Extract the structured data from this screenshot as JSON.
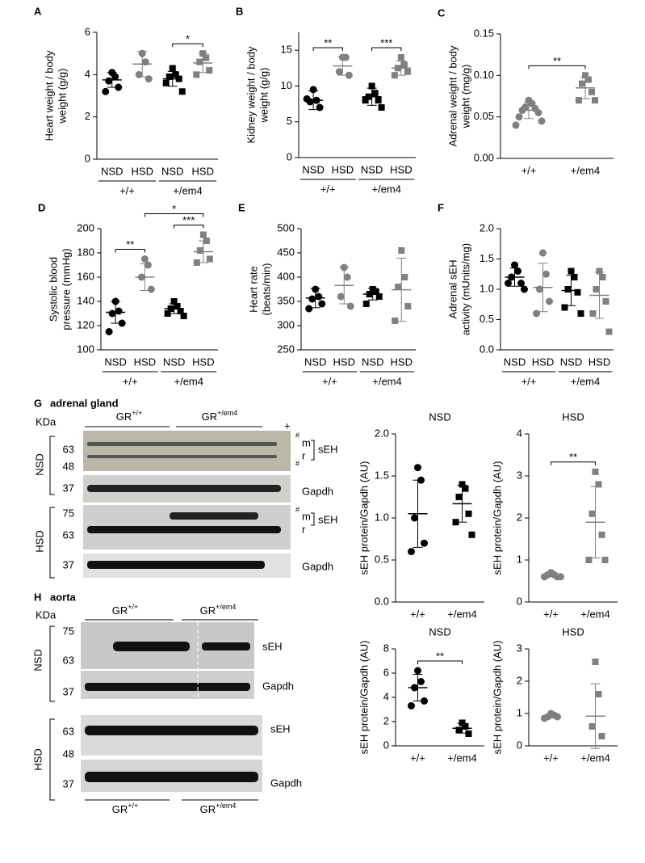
{
  "chart_data": [
    {
      "type": "dot",
      "panel": "A",
      "ylabel": [
        "Heart weight / body",
        "weight (g/g)"
      ],
      "ylim": [
        0,
        6
      ],
      "yticks": [
        0,
        2,
        4,
        6
      ],
      "categories": [
        "NSD",
        "HSD",
        "NSD",
        "HSD"
      ],
      "groups": [
        "+/+",
        "+/em4"
      ],
      "colors": [
        "#000000",
        "#808080",
        "#000000",
        "#808080"
      ],
      "markers": [
        "circle",
        "circle",
        "square",
        "square"
      ],
      "points": [
        [
          4.1,
          3.9,
          3.7,
          3.4,
          3.2
        ],
        [
          5.0,
          4.6,
          4.0,
          3.8
        ],
        [
          4.3,
          4.0,
          3.9,
          3.8,
          3.6,
          3.2
        ],
        [
          5.0,
          4.8,
          4.6,
          4.2,
          4.0
        ]
      ],
      "means": [
        3.75,
        4.5,
        3.8,
        4.55
      ],
      "sds": [
        0.35,
        0.6,
        0.35,
        0.45
      ],
      "brackets": [
        {
          "between": [
            2,
            3
          ],
          "label": "*"
        }
      ]
    },
    {
      "type": "dot",
      "panel": "B",
      "ylabel": [
        "Kidney weight / body",
        "weight (g/g)"
      ],
      "ylim": [
        0,
        17.5
      ],
      "yticks": [
        0,
        5,
        10,
        15
      ],
      "categories": [
        "NSD",
        "HSD",
        "NSD",
        "HSD"
      ],
      "groups": [
        "+/+",
        "+/em4"
      ],
      "colors": [
        "#000000",
        "#808080",
        "#000000",
        "#808080"
      ],
      "markers": [
        "circle",
        "circle",
        "square",
        "square"
      ],
      "points": [
        [
          9.5,
          8,
          7.8,
          7,
          8.2
        ],
        [
          14,
          14,
          12,
          11.5
        ],
        [
          10,
          9,
          8.5,
          8,
          8,
          7
        ],
        [
          14,
          13,
          12.5,
          12,
          11.5
        ]
      ],
      "means": [
        8,
        12.8,
        8.5,
        12.5
      ],
      "sds": [
        1.3,
        1.3,
        1.2,
        1.0
      ],
      "brackets": [
        {
          "between": [
            0,
            1
          ],
          "label": "**"
        },
        {
          "between": [
            2,
            3
          ],
          "label": "***"
        }
      ]
    },
    {
      "type": "dot",
      "panel": "C",
      "ylabel": [
        "Adrenal weight / body",
        "weight (mg/g)"
      ],
      "ylim": [
        0,
        0.15
      ],
      "yticks": [
        {
          "value": 0,
          "label": "0.00"
        },
        0.05,
        {
          "value": 0.1,
          "label": "0.10"
        },
        0.15
      ],
      "categories": [
        "+/+",
        "+/em4"
      ],
      "colors": [
        "#808080",
        "#808080"
      ],
      "markers": [
        "circle",
        "square"
      ],
      "points": [
        [
          0.07,
          0.066,
          0.062,
          0.06,
          0.058,
          0.055,
          0.05,
          0.045,
          0.04
        ],
        [
          0.1,
          0.095,
          0.09,
          0.08,
          0.07,
          0.07
        ]
      ],
      "means": [
        0.058,
        0.085
      ],
      "sds": [
        0.01,
        0.013
      ],
      "brackets": [
        {
          "between": [
            0,
            1
          ],
          "label": "**"
        }
      ]
    },
    {
      "type": "dot",
      "panel": "D",
      "ylabel": [
        "Systolic blood",
        "pressure (mmHg)"
      ],
      "ylim": [
        100,
        200
      ],
      "yticks": [
        100,
        120,
        140,
        160,
        180,
        200
      ],
      "categories": [
        "NSD",
        "HSD",
        "NSD",
        "HSD"
      ],
      "groups": [
        "+/+",
        "+/em4"
      ],
      "colors": [
        "#000000",
        "#808080",
        "#000000",
        "#808080"
      ],
      "markers": [
        "circle",
        "circle",
        "square",
        "square"
      ],
      "points": [
        [
          140,
          132,
          130,
          122,
          115
        ],
        [
          175,
          170,
          160,
          150
        ],
        [
          140,
          136,
          134,
          132,
          130,
          128
        ],
        [
          195,
          190,
          182,
          175,
          172
        ]
      ],
      "means": [
        131,
        160,
        134,
        181
      ],
      "sds": [
        9,
        11,
        4,
        9
      ],
      "brackets": [
        {
          "between": [
            0,
            1
          ],
          "label": "**"
        },
        {
          "between": [
            2,
            3
          ],
          "label": "***"
        },
        {
          "between": [
            1,
            3
          ],
          "label": "*"
        }
      ]
    },
    {
      "type": "dot",
      "panel": "E",
      "ylabel": [
        "Heart rate",
        "(beats/min)"
      ],
      "ylim": [
        250,
        500
      ],
      "yticks": [
        250,
        300,
        350,
        400,
        450,
        500
      ],
      "categories": [
        "NSD",
        "HSD",
        "NSD",
        "HSD"
      ],
      "groups": [
        "+/+",
        "+/em4"
      ],
      "colors": [
        "#000000",
        "#808080",
        "#000000",
        "#808080"
      ],
      "markers": [
        "circle",
        "circle",
        "square",
        "square"
      ],
      "points": [
        [
          375,
          360,
          355,
          345,
          335
        ],
        [
          420,
          400,
          360,
          340
        ],
        [
          375,
          370,
          365,
          360,
          345
        ],
        [
          455,
          400,
          380,
          340,
          310
        ]
      ],
      "means": [
        357,
        383,
        365,
        374
      ],
      "sds": [
        20,
        38,
        12,
        65
      ],
      "brackets": []
    },
    {
      "type": "dot",
      "panel": "F",
      "ylabel": [
        "Adrenal sEH",
        "activity (mUnits/mg)"
      ],
      "ylim": [
        0,
        2
      ],
      "yticks": [
        {
          "value": 0,
          "label": "0.0"
        },
        0.5,
        {
          "value": 1,
          "label": "1.0"
        },
        1.5,
        {
          "value": 2,
          "label": "2.0"
        }
      ],
      "categories": [
        "NSD",
        "HSD",
        "NSD",
        "HSD"
      ],
      "groups": [
        "+/+",
        "+/em4"
      ],
      "colors": [
        "#000000",
        "#808080",
        "#000000",
        "#808080"
      ],
      "markers": [
        "circle",
        "circle",
        "square",
        "square"
      ],
      "points": [
        [
          1.4,
          1.3,
          1.2,
          1.1,
          1.1,
          1.0
        ],
        [
          1.6,
          1.25,
          1.0,
          0.8,
          0.6
        ],
        [
          1.3,
          1.2,
          1.0,
          0.95,
          0.7,
          0.6
        ],
        [
          1.3,
          1.2,
          1.0,
          0.8,
          0.6,
          0.3
        ]
      ],
      "means": [
        1.2,
        1.03,
        0.98,
        0.9
      ],
      "sds": [
        0.15,
        0.4,
        0.25,
        0.38
      ],
      "brackets": []
    },
    {
      "type": "dot",
      "title": "NSD",
      "ylabel": [
        "sEH protein/Gapdh (AU)"
      ],
      "ylim": [
        0,
        2
      ],
      "yticks": [
        {
          "value": 0,
          "label": "0.0"
        },
        0.5,
        {
          "value": 1,
          "label": "1.0"
        },
        1.5,
        {
          "value": 2,
          "label": "2.0"
        }
      ],
      "categories": [
        "+/+",
        "+/em4"
      ],
      "colors": [
        "#000000",
        "#000000"
      ],
      "markers": [
        "circle",
        "square"
      ],
      "points": [
        [
          1.6,
          1.45,
          1.0,
          0.7,
          0.6
        ],
        [
          1.4,
          1.35,
          1.25,
          1.05,
          0.95,
          0.8
        ]
      ],
      "means": [
        1.05,
        1.17
      ],
      "sds": [
        0.4,
        0.22
      ],
      "brackets": []
    },
    {
      "type": "dot",
      "title": "HSD",
      "ylabel": [
        "sEH protein/Gapdh (AU)"
      ],
      "ylim": [
        0,
        4
      ],
      "yticks": [
        0,
        1,
        2,
        3,
        4
      ],
      "categories": [
        "+/+",
        "+/em4"
      ],
      "colors": [
        "#808080",
        "#808080"
      ],
      "markers": [
        "circle",
        "square"
      ],
      "points": [
        [
          0.7,
          0.65,
          0.65,
          0.6,
          0.6,
          0.6
        ],
        [
          3.1,
          2.8,
          2.1,
          1.6,
          1.0,
          1.0
        ]
      ],
      "means": [
        0.65,
        1.9
      ],
      "sds": [
        0.05,
        0.85
      ],
      "brackets": [
        {
          "between": [
            0,
            1
          ],
          "label": "**"
        }
      ]
    },
    {
      "type": "dot",
      "title": "NSD",
      "ylabel": [
        "sEH protein/Gapdh (AU)"
      ],
      "ylim": [
        0,
        8
      ],
      "yticks": [
        0,
        2,
        4,
        6,
        8
      ],
      "categories": [
        "+/+",
        "+/em4"
      ],
      "colors": [
        "#000000",
        "#000000"
      ],
      "markers": [
        "circle",
        "square"
      ],
      "points": [
        [
          6.2,
          5.3,
          4.8,
          3.7,
          3.3
        ],
        [
          1.9,
          1.6,
          1.3,
          1.0
        ]
      ],
      "means": [
        4.8,
        1.45
      ],
      "sds": [
        1.1,
        0.4
      ],
      "brackets": [
        {
          "between": [
            0,
            1
          ],
          "label": "**"
        }
      ]
    },
    {
      "type": "dot",
      "title": "HSD",
      "ylabel": [
        "sEH protein/Gapdh (AU)"
      ],
      "ylim": [
        0,
        3
      ],
      "yticks": [
        0,
        1,
        2,
        3
      ],
      "categories": [
        "+/+",
        "+/em4"
      ],
      "colors": [
        "#808080",
        "#808080"
      ],
      "markers": [
        "circle",
        "square"
      ],
      "points": [
        [
          1.0,
          0.95,
          0.9,
          0.9,
          0.85
        ],
        [
          2.6,
          1.6,
          0.6,
          0.3
        ]
      ],
      "means": [
        0.92,
        0.92
      ],
      "sds": [
        0.06,
        1.0
      ],
      "brackets": []
    }
  ],
  "blots": [
    {
      "panel": "G",
      "title": "adrenal gland",
      "kda": "KDa",
      "gr": "GR",
      "wt": "+/+",
      "mut": "+/em4",
      "positive": "+",
      "rows": [
        {
          "diet": "NSD",
          "sizes": [
            "63",
            "48",
            "37"
          ],
          "bands": [
            "#",
            "m",
            "r",
            "#",
            "sEH",
            "Gapdh"
          ]
        },
        {
          "diet": "HSD",
          "sizes": [
            "75",
            "63",
            "37"
          ],
          "bands": [
            "#",
            "m",
            "r",
            "sEH",
            "Gapdh"
          ]
        }
      ]
    },
    {
      "panel": "H",
      "title": "aorta",
      "kda": "KDa",
      "gr": "GR",
      "wt": "+/+",
      "mut": "+/em4",
      "rows": [
        {
          "diet": "NSD",
          "sizes": [
            "75",
            "63",
            "37"
          ],
          "bands": [
            "sEH",
            "Gapdh"
          ]
        },
        {
          "diet": "HSD",
          "sizes": [
            "63",
            "48",
            "37"
          ],
          "bands": [
            "sEH",
            "Gapdh"
          ]
        }
      ]
    }
  ]
}
